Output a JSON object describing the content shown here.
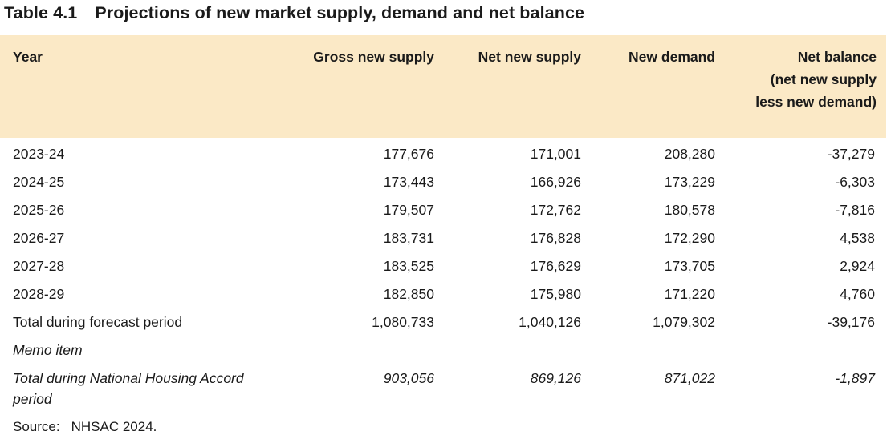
{
  "table_number": "Table 4.1",
  "title": "Projections of new market supply, demand and net balance",
  "columns": {
    "year": "Year",
    "gross_new_supply": "Gross new supply",
    "net_new_supply": "Net new supply",
    "new_demand": "New demand",
    "net_balance_line1": "Net balance",
    "net_balance_line2": "(net new supply",
    "net_balance_line3": "less new demand)"
  },
  "rows": [
    {
      "year": "2023-24",
      "gross": "177,676",
      "net_supply": "171,001",
      "demand": "208,280",
      "balance": "-37,279"
    },
    {
      "year": "2024-25",
      "gross": "173,443",
      "net_supply": "166,926",
      "demand": "173,229",
      "balance": "-6,303"
    },
    {
      "year": "2025-26",
      "gross": "179,507",
      "net_supply": "172,762",
      "demand": "180,578",
      "balance": "-7,816"
    },
    {
      "year": "2026-27",
      "gross": "183,731",
      "net_supply": "176,828",
      "demand": "172,290",
      "balance": "4,538"
    },
    {
      "year": "2027-28",
      "gross": "183,525",
      "net_supply": "176,629",
      "demand": "173,705",
      "balance": "2,924"
    },
    {
      "year": "2028-29",
      "gross": "182,850",
      "net_supply": "175,980",
      "demand": "171,220",
      "balance": "4,760"
    }
  ],
  "total": {
    "label": "Total during forecast period",
    "gross": "1,080,733",
    "net_supply": "1,040,126",
    "demand": "1,079,302",
    "balance": "-39,176"
  },
  "memo": {
    "label": "Memo item",
    "total_label_line1": "Total during National Housing Accord",
    "total_label_line2": "period",
    "gross": "903,056",
    "net_supply": "869,126",
    "demand": "871,022",
    "balance": "-1,897"
  },
  "source": {
    "label": "Source:",
    "text": "NHSAC 2024."
  },
  "colors": {
    "header_bg": "#fbe9c6",
    "text": "#1a1a1a"
  }
}
